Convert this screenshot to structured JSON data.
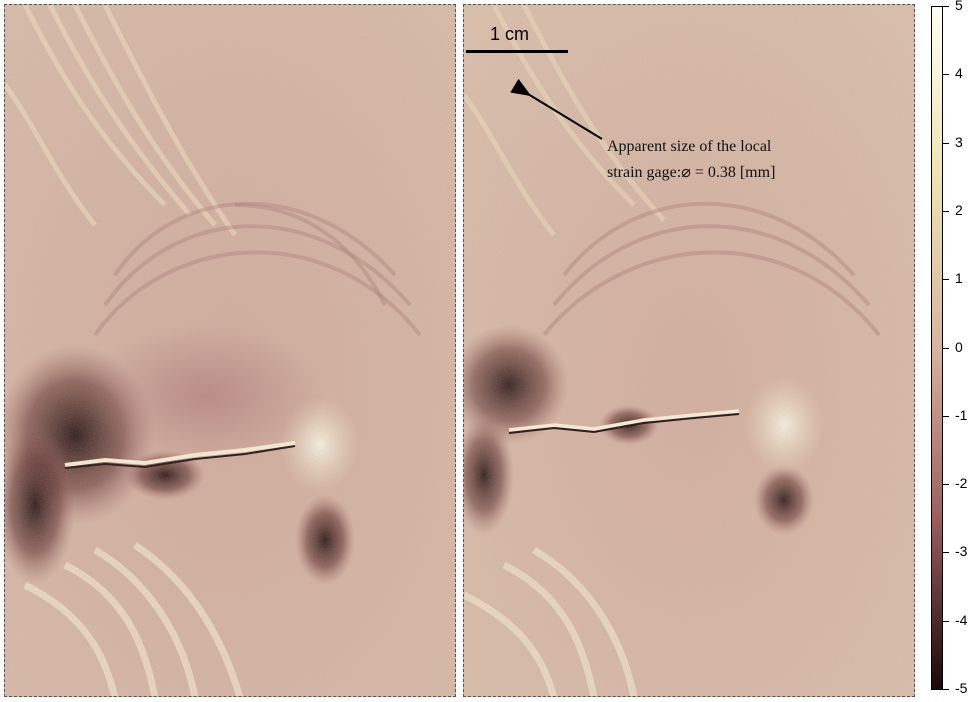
{
  "scalebar": {
    "label": "1 cm"
  },
  "annotation": {
    "line1": "Apparent size of the local",
    "line2": "strain gage:⌀ = 0.38 [mm]"
  },
  "colorbar": {
    "ticks": [
      "5",
      "4",
      "3",
      "2",
      "1",
      "0",
      "-1",
      "-2",
      "-3",
      "-4",
      "-5"
    ],
    "range": [
      -5,
      5
    ],
    "colors": {
      "max": "#fffff2",
      "high": "#eee3b0",
      "mid": "#d8b49e",
      "low": "#9c5d5e",
      "min": "#1a0808"
    }
  },
  "panels": [
    "left",
    "right"
  ]
}
